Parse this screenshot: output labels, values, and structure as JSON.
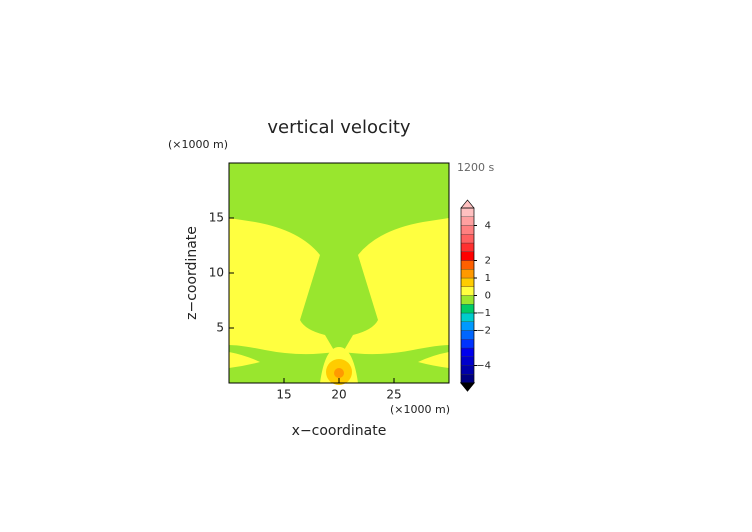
{
  "chart_data": {
    "type": "contour",
    "title": "vertical velocity",
    "time_label": "1200 s",
    "x_label": "x−coordinate",
    "y_label": "z−coordinate",
    "x_unit": "(×1000 m)",
    "y_unit": "(×1000 m)",
    "xlim": [
      10,
      30
    ],
    "ylim": [
      0,
      20
    ],
    "xticks": [
      15,
      20,
      25
    ],
    "yticks": [
      5,
      10,
      15
    ],
    "colorbar": {
      "lim": [
        -5,
        5
      ],
      "bounds": [
        -5,
        -4.5,
        -4,
        -3.5,
        -3,
        -2.5,
        -2,
        -1.5,
        -1,
        -0.5,
        0,
        0.5,
        1,
        1.5,
        2,
        2.5,
        3,
        3.5,
        4,
        4.5,
        5
      ],
      "colors": [
        "#000080",
        "#0000aa",
        "#0000cc",
        "#0000ee",
        "#0033ff",
        "#0066ff",
        "#0099ff",
        "#00cccc",
        "#00cc66",
        "#99e62e",
        "#ffff40",
        "#ffcc00",
        "#ff9900",
        "#ff6000",
        "#ff0000",
        "#ff3030",
        "#ff6060",
        "#ff8080",
        "#ffa0a0",
        "#ffc0c0"
      ],
      "ticks": [
        {
          "value": -4,
          "label": "−4"
        },
        {
          "value": -2,
          "label": "−2"
        },
        {
          "value": -1,
          "label": "−1"
        },
        0,
        1,
        2,
        4
      ]
    }
  }
}
